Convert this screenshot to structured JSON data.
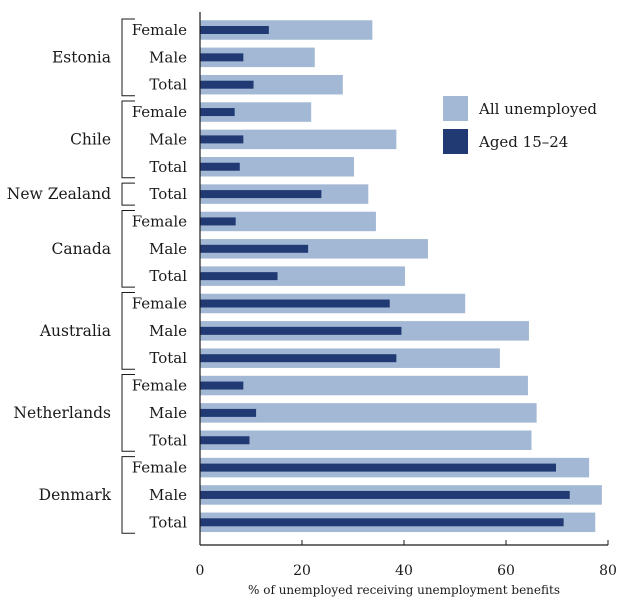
{
  "chart_data": {
    "type": "bar",
    "orientation": "horizontal",
    "title": "",
    "xlabel": "% of unemployed receiving unemployment benefits",
    "ylabel": "",
    "xlim": [
      0,
      80
    ],
    "x_ticks": [
      "0",
      "20",
      "40",
      "60",
      "80"
    ],
    "grid": false,
    "legend_position": "top-right",
    "colors": {
      "all_unemployed": "#a3b8d4",
      "aged_15_24": "#223a73"
    },
    "groups": [
      {
        "country": "Estonia",
        "subgroups": [
          "Female",
          "Male",
          "Total"
        ]
      },
      {
        "country": "Chile",
        "subgroups": [
          "Female",
          "Male",
          "Total"
        ]
      },
      {
        "country": "New Zealand",
        "subgroups": [
          "Total"
        ]
      },
      {
        "country": "Canada",
        "subgroups": [
          "Female",
          "Male",
          "Total"
        ]
      },
      {
        "country": "Australia",
        "subgroups": [
          "Female",
          "Male",
          "Total"
        ]
      },
      {
        "country": "Netherlands",
        "subgroups": [
          "Female",
          "Male",
          "Total"
        ]
      },
      {
        "country": "Denmark",
        "subgroups": [
          "Female",
          "Male",
          "Total"
        ]
      }
    ],
    "series": [
      {
        "name": "All unemployed",
        "values": [
          33.8,
          22.5,
          28,
          21.8,
          38.5,
          30.2,
          33,
          34.5,
          44.7,
          40.2,
          52,
          64.5,
          58.8,
          64.3,
          66,
          65,
          76.3,
          78.8,
          77.5
        ]
      },
      {
        "name": "Aged 15–24",
        "values": [
          13.5,
          8.5,
          10.5,
          6.8,
          8.5,
          7.8,
          23.8,
          7,
          21.2,
          15.2,
          37.2,
          39.5,
          38.5,
          8.5,
          11,
          9.7,
          69.8,
          72.5,
          71.3
        ]
      }
    ]
  }
}
